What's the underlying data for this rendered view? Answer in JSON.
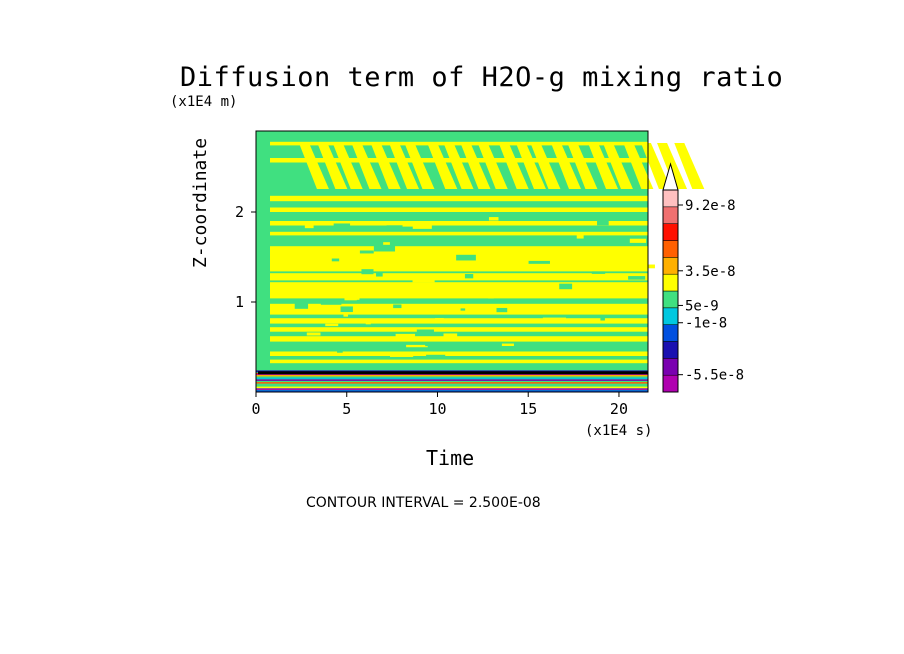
{
  "chart_data": {
    "type": "heatmap",
    "title": "Diffusion term of H2O-g mixing ratio",
    "xlabel": "Time",
    "ylabel": "Z-coordinate",
    "x_unit_note": "(x1E4 s)",
    "y_unit_note": "(x1E4 m)",
    "xlim": [
      0,
      21.6
    ],
    "ylim": [
      0,
      2.9
    ],
    "x_ticks": [
      "0",
      "5",
      "10",
      "15",
      "20"
    ],
    "y_ticks": [
      "1",
      "2"
    ],
    "x_tick_values": [
      0,
      5,
      10,
      15,
      20
    ],
    "y_tick_values": [
      1,
      2
    ],
    "contour_interval_text": "CONTOUR INTERVAL = 2.500E-08",
    "colorbar": {
      "colors": [
        "#b000b0",
        "#7a00b0",
        "#1a10b0",
        "#0050e0",
        "#00c8e0",
        "#40e080",
        "#ffff00",
        "#ffb000",
        "#ff6000",
        "#ff1000",
        "#f07070",
        "#ffc0c0",
        "#ffffff"
      ],
      "labels": [
        "9.2e-8",
        "3.5e-8",
        "5e-9",
        "-1e-8",
        "-5.5e-8"
      ],
      "label_values": [
        9.2e-08,
        3.5e-08,
        5e-09,
        -1e-08,
        -5.5e-08
      ]
    },
    "field_description_colors": {
      "background": "#40e080",
      "positive_small": "#ffff00"
    }
  }
}
